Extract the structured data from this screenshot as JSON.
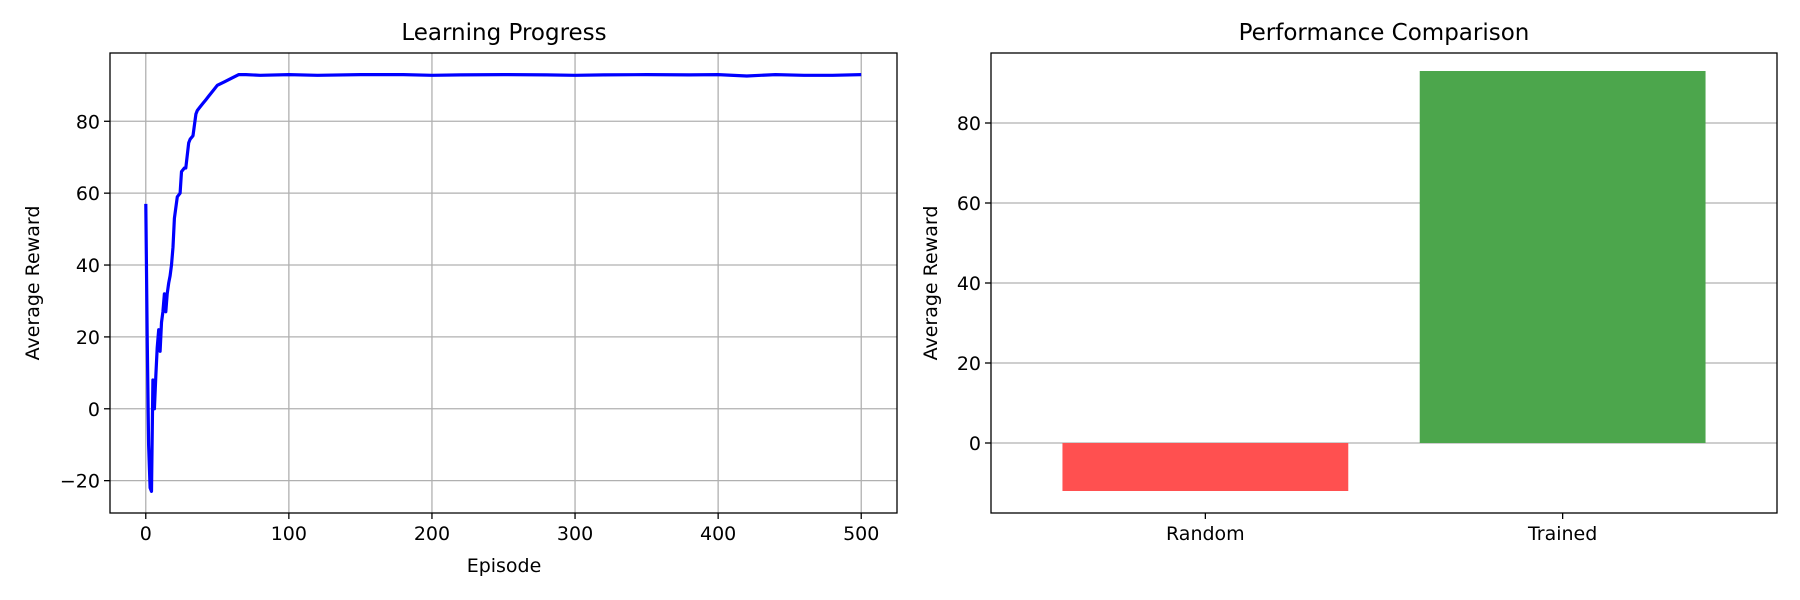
{
  "colors": {
    "line": "#0000ff",
    "grid": "#b0b0b0",
    "axis": "#000000",
    "bar_random": "#ff5050",
    "bar_trained": "#4ca64c"
  },
  "chart_data": [
    {
      "type": "line",
      "title": "Learning Progress",
      "xlabel": "Episode",
      "ylabel": "Average Reward",
      "xlim": [
        -25,
        525
      ],
      "ylim": [
        -29,
        99
      ],
      "xticks": [
        0,
        100,
        200,
        300,
        400,
        500
      ],
      "yticks": [
        -20,
        0,
        20,
        40,
        60,
        80
      ],
      "grid": true,
      "series": [
        {
          "x": [
            0,
            1,
            2,
            3,
            4,
            5,
            6,
            7,
            8,
            9,
            10,
            11,
            12,
            13,
            14,
            15,
            16,
            17,
            18,
            19,
            20,
            22,
            24,
            25,
            27,
            28,
            30,
            31,
            33,
            35,
            36,
            38,
            40,
            42,
            44,
            46,
            48,
            50,
            55,
            60,
            65,
            70,
            80,
            100,
            120,
            150,
            180,
            200,
            220,
            250,
            280,
            300,
            320,
            350,
            380,
            400,
            420,
            440,
            460,
            480,
            500
          ],
          "y": [
            57,
            20,
            -10,
            -22,
            -23,
            8,
            0,
            9,
            17,
            22,
            16,
            24,
            27,
            32,
            27,
            32,
            35,
            37,
            40,
            45,
            53,
            59,
            60,
            66,
            67,
            67,
            74,
            75,
            76,
            82,
            83,
            84,
            85,
            86,
            87,
            88,
            89,
            90,
            91,
            92,
            93,
            93,
            92.8,
            93,
            92.8,
            93,
            93,
            92.8,
            92.9,
            93,
            92.9,
            92.8,
            92.9,
            93,
            92.9,
            93,
            92.6,
            93,
            92.8,
            92.8,
            93
          ]
        }
      ]
    },
    {
      "type": "bar",
      "title": "Performance Comparison",
      "xlabel": "",
      "ylabel": "Average Reward",
      "ylim": [
        -17.5,
        97.5
      ],
      "yticks": [
        0,
        20,
        40,
        60,
        80
      ],
      "grid": true,
      "grid_axis": "y",
      "categories": [
        "Random",
        "Trained"
      ],
      "values": [
        -12,
        93
      ]
    }
  ]
}
